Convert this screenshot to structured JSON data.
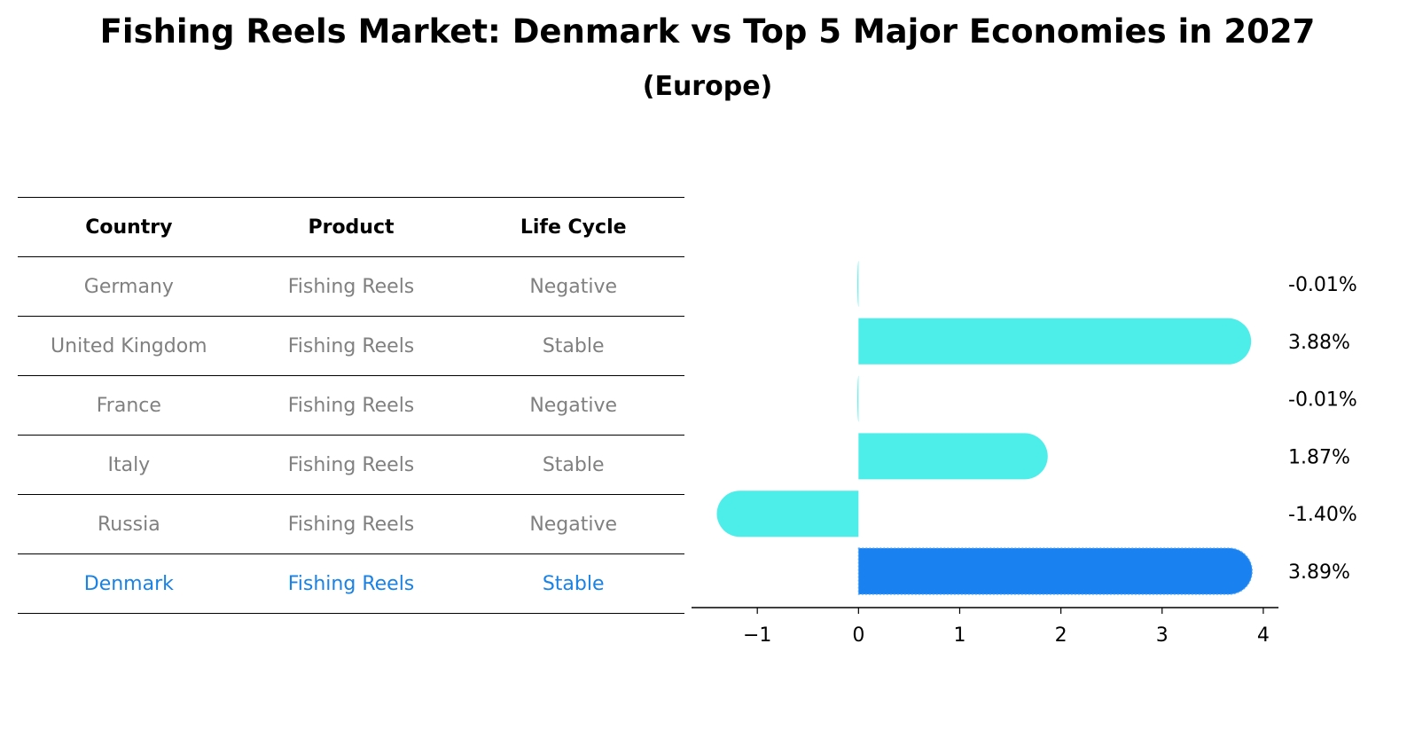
{
  "title": "Fishing Reels Market: Denmark vs Top 5 Major Economies in 2027",
  "subtitle": "(Europe)",
  "table": {
    "headers": [
      "Country",
      "Product",
      "Life Cycle"
    ],
    "rows": [
      {
        "country": "Germany",
        "product": "Fishing Reels",
        "life_cycle": "Negative"
      },
      {
        "country": "United Kingdom",
        "product": "Fishing Reels",
        "life_cycle": "Stable"
      },
      {
        "country": "France",
        "product": "Fishing Reels",
        "life_cycle": "Negative"
      },
      {
        "country": "Italy",
        "product": "Fishing Reels",
        "life_cycle": "Stable"
      },
      {
        "country": "Russia",
        "product": "Fishing Reels",
        "life_cycle": "Negative"
      },
      {
        "country": "Denmark",
        "product": "Fishing Reels",
        "life_cycle": "Stable",
        "highlight": true
      }
    ]
  },
  "colors": {
    "bar": "#4deeea",
    "highlight": "#1a82f0",
    "highlight_text": "#1a82e6",
    "muted_text": "#808080"
  },
  "chart_data": {
    "type": "bar",
    "orientation": "horizontal",
    "categories": [
      "Germany",
      "United Kingdom",
      "France",
      "Italy",
      "Russia",
      "Denmark"
    ],
    "values": [
      -0.01,
      3.88,
      -0.01,
      1.87,
      -1.4,
      3.89
    ],
    "value_labels": [
      "-0.01%",
      "3.88%",
      "-0.01%",
      "1.87%",
      "-1.40%",
      "3.89%"
    ],
    "highlight_index": 5,
    "xlim": [
      -1.65,
      4.15
    ],
    "xticks": [
      -1,
      0,
      1,
      2,
      3,
      4
    ],
    "xtick_labels": [
      "−1",
      "0",
      "1",
      "2",
      "3",
      "4"
    ],
    "grid": false
  }
}
